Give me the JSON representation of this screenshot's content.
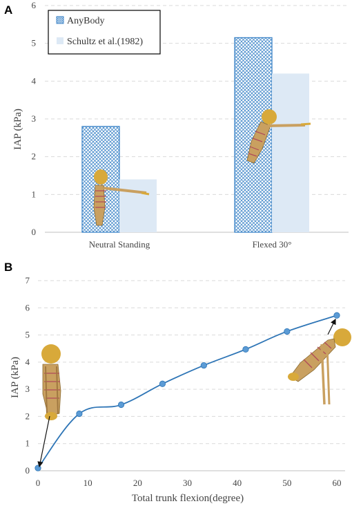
{
  "chart_data": [
    {
      "panel": "A",
      "type": "bar",
      "categories": [
        "Neutral Standing",
        "Flexed 30°"
      ],
      "series": [
        {
          "name": "AnyBody",
          "values": [
            2.8,
            5.15
          ]
        },
        {
          "name": "Schultz et al.(1982)",
          "values": [
            1.4,
            4.2
          ]
        }
      ],
      "ylabel": "IAP (kPa)",
      "xlabel": "",
      "ylim": [
        0,
        6
      ],
      "yticks": [
        "0",
        "1",
        "2",
        "3",
        "4",
        "5",
        "6"
      ],
      "grid": true,
      "legend": "top-left",
      "colors": {
        "anybody": "#3f86c8",
        "schultz": "#dde9f5"
      }
    },
    {
      "panel": "B",
      "type": "line",
      "x": [
        0,
        8.3,
        16.7,
        25,
        33.3,
        41.7,
        50,
        60
      ],
      "series": [
        {
          "values": [
            0.1,
            2.1,
            2.43,
            3.2,
            3.88,
            4.47,
            5.13,
            5.72
          ]
        }
      ],
      "ylabel": "IAP (kPa)",
      "xlabel": "Total trunk flexion(degree)",
      "xlim": [
        0,
        60
      ],
      "ylim": [
        0,
        7
      ],
      "xticks": [
        "0",
        "10",
        "20",
        "30",
        "40",
        "50",
        "60"
      ],
      "yticks": [
        "0",
        "1",
        "2",
        "3",
        "4",
        "5",
        "6",
        "7"
      ],
      "grid": true,
      "colors": {
        "line": "#2e75b6",
        "marker": "#5b9bd5"
      }
    }
  ],
  "panels": {
    "a_letter": "A",
    "b_letter": "B"
  },
  "figures": {
    "a_neutral": "skeleton-standing-icon",
    "a_flexed": "skeleton-flexed-icon",
    "b_upright": "skeleton-upright-icon",
    "b_bent": "skeleton-bent-icon"
  }
}
